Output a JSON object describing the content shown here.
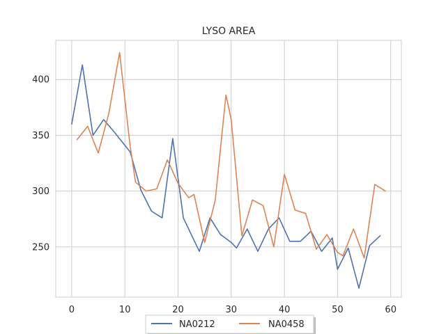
{
  "chart_data": {
    "type": "line",
    "title": "LYSO AREA",
    "xlabel": "",
    "ylabel": "",
    "xlim": [
      -3,
      62
    ],
    "ylim": [
      205,
      435
    ],
    "xticks": [
      0,
      10,
      20,
      30,
      40,
      50,
      60
    ],
    "yticks": [
      250,
      300,
      350,
      400
    ],
    "grid": true,
    "legend": "bottom-center",
    "series": [
      {
        "name": "NA0212",
        "color": "#4c72b0",
        "x": [
          0,
          2,
          4,
          6,
          8,
          11,
          13,
          15,
          17,
          19,
          21,
          24,
          26,
          28,
          30,
          31,
          33,
          35,
          37,
          39,
          41,
          43,
          45,
          47,
          49,
          50,
          52,
          54,
          56,
          58
        ],
        "y": [
          360,
          413,
          350,
          364,
          353,
          335,
          301,
          282,
          276,
          347,
          276,
          246,
          276,
          261,
          254,
          249,
          266,
          246,
          266,
          276,
          255,
          255,
          264,
          246,
          258,
          230,
          249,
          213,
          251,
          260
        ]
      },
      {
        "name": "NA0458",
        "color": "#dd8452",
        "x": [
          1,
          3,
          5,
          7,
          9,
          11,
          12,
          14,
          16,
          18,
          20,
          22,
          23,
          25,
          27,
          29,
          30,
          32,
          34,
          36,
          38,
          40,
          42,
          44,
          46,
          48,
          50,
          51,
          53,
          55,
          57,
          59
        ],
        "y": [
          346,
          358,
          334,
          370,
          424,
          340,
          308,
          300,
          302,
          328,
          307,
          294,
          297,
          254,
          292,
          386,
          364,
          260,
          292,
          287,
          250,
          315,
          283,
          280,
          248,
          261,
          245,
          242,
          266,
          240,
          306,
          300
        ]
      }
    ]
  }
}
